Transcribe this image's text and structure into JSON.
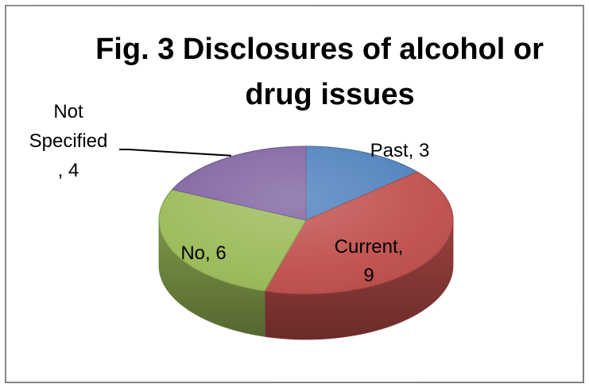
{
  "chart_data": {
    "type": "pie",
    "title": "Fig. 3 Disclosures of alcohol or drug issues",
    "title_lines": [
      "Fig. 3 Disclosures of alcohol or",
      "drug issues"
    ],
    "style": "3d",
    "legend": "none",
    "slices": [
      {
        "label": "Past",
        "value": 3,
        "color": "#4f81bd",
        "label_lines": [
          "Past, 3"
        ]
      },
      {
        "label": "Current",
        "value": 9,
        "color": "#c0504d",
        "label_lines": [
          "Current,",
          "9"
        ]
      },
      {
        "label": "No",
        "value": 6,
        "color": "#9bbb59",
        "label_lines": [
          "No, 6"
        ]
      },
      {
        "label": "Not Specified",
        "value": 4,
        "color": "#8064a2",
        "label_lines": [
          "Not",
          "Specified",
          ", 4"
        ]
      }
    ]
  }
}
